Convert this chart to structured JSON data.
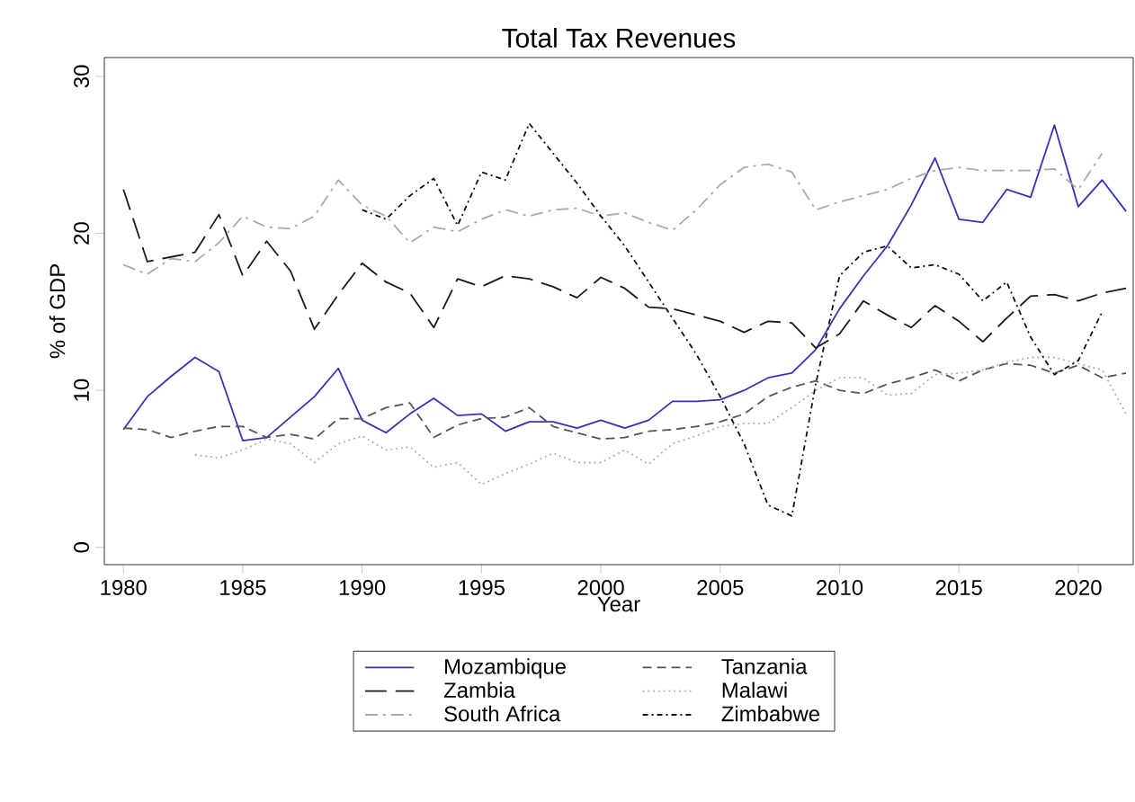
{
  "chart_data": {
    "type": "line",
    "title": "Total Tax Revenues",
    "xlabel": "Year",
    "ylabel": "% of GDP",
    "x": [
      1980,
      1981,
      1982,
      1983,
      1984,
      1985,
      1986,
      1987,
      1988,
      1989,
      1990,
      1991,
      1992,
      1993,
      1994,
      1995,
      1996,
      1997,
      1998,
      1999,
      2000,
      2001,
      2002,
      2003,
      2004,
      2005,
      2006,
      2007,
      2008,
      2009,
      2010,
      2011,
      2012,
      2013,
      2014,
      2015,
      2016,
      2017,
      2018,
      2019,
      2020,
      2021,
      2022
    ],
    "series": [
      {
        "name": "Mozambique",
        "color": "#3333bb",
        "line_style": "solid",
        "values": [
          7.5,
          9.6,
          10.9,
          12.1,
          11.2,
          6.8,
          7.0,
          8.3,
          9.6,
          11.4,
          8.1,
          7.3,
          8.5,
          9.5,
          8.4,
          8.5,
          7.4,
          8.0,
          8.0,
          7.6,
          8.1,
          7.6,
          8.1,
          9.3,
          9.3,
          9.4,
          10.0,
          10.8,
          11.1,
          12.6,
          15.2,
          17.3,
          19.2,
          21.8,
          24.8,
          20.9,
          20.7,
          22.8,
          22.3,
          26.9,
          21.7,
          23.4,
          21.4
        ]
      },
      {
        "name": "Tanzania",
        "color": "#555555",
        "line_style": "dashed",
        "values": [
          7.6,
          7.5,
          7.0,
          7.4,
          7.7,
          7.7,
          7.0,
          7.2,
          6.9,
          8.2,
          8.2,
          8.9,
          9.2,
          7.0,
          7.8,
          8.2,
          8.3,
          8.9,
          7.7,
          7.3,
          6.9,
          7.0,
          7.4,
          7.5,
          7.7,
          8.0,
          8.5,
          9.6,
          10.2,
          10.6,
          10.0,
          9.8,
          10.4,
          10.8,
          11.3,
          10.6,
          11.3,
          11.7,
          11.6,
          11.1,
          11.6,
          10.8,
          11.1
        ]
      },
      {
        "name": "Zambia",
        "color": "#1a1a1a",
        "line_style": "longdashed",
        "values": [
          22.8,
          18.2,
          18.5,
          18.8,
          21.2,
          17.3,
          19.5,
          17.6,
          13.9,
          16.1,
          18.1,
          16.9,
          16.2,
          14.0,
          17.1,
          16.6,
          17.3,
          17.1,
          16.6,
          15.9,
          17.2,
          16.5,
          15.3,
          15.2,
          14.8,
          14.4,
          13.7,
          14.4,
          14.3,
          12.7,
          13.6,
          15.7,
          14.8,
          14.0,
          15.4,
          14.4,
          13.1,
          14.6,
          16.0,
          16.1,
          15.7,
          16.2,
          16.5
        ]
      },
      {
        "name": "Malawi",
        "color": "#aaaaaa",
        "line_style": "dotted",
        "values": [
          null,
          null,
          null,
          5.9,
          5.7,
          6.2,
          6.9,
          6.6,
          5.4,
          6.6,
          7.1,
          6.2,
          6.4,
          5.1,
          5.4,
          4.0,
          4.7,
          5.3,
          6.0,
          5.4,
          5.4,
          6.2,
          5.3,
          6.6,
          7.1,
          7.7,
          7.9,
          7.9,
          8.9,
          10.0,
          10.8,
          10.8,
          9.7,
          9.8,
          11.0,
          11.1,
          11.3,
          11.8,
          12.1,
          12.1,
          11.7,
          11.3,
          8.5
        ]
      },
      {
        "name": "South Africa",
        "color": "#aaaaaa",
        "line_style": "dashdotted",
        "values": [
          18.0,
          17.4,
          18.4,
          18.2,
          19.4,
          21.1,
          20.4,
          20.3,
          21.1,
          23.4,
          21.8,
          21.1,
          19.4,
          20.4,
          20.1,
          20.9,
          21.5,
          21.1,
          21.5,
          21.6,
          21.1,
          21.3,
          20.7,
          20.2,
          21.5,
          23.1,
          24.2,
          24.4,
          23.9,
          21.5,
          22.0,
          22.4,
          22.8,
          23.5,
          24.0,
          24.2,
          24.0,
          24.0,
          24.0,
          24.1,
          22.8,
          25.1,
          null
        ]
      },
      {
        "name": "Zimbabwe",
        "color": "#111111",
        "line_style": "densedashdotted",
        "values": [
          null,
          null,
          null,
          null,
          null,
          null,
          null,
          null,
          null,
          null,
          21.5,
          20.9,
          22.4,
          23.5,
          20.5,
          23.9,
          23.4,
          27.0,
          25.1,
          23.2,
          21.1,
          19.2,
          16.9,
          14.6,
          12.3,
          9.6,
          6.6,
          2.7,
          2.0,
          10.4,
          17.3,
          18.8,
          19.2,
          17.8,
          18.0,
          17.4,
          15.7,
          16.9,
          13.4,
          11.0,
          11.9,
          15.0,
          null
        ]
      }
    ],
    "xlim": [
      1979.2,
      2022.3
    ],
    "ylim": [
      -1.1,
      31.2
    ],
    "xticks": [
      1980,
      1985,
      1990,
      1995,
      2000,
      2005,
      2010,
      2015,
      2020
    ],
    "yticks": [
      0,
      10,
      20,
      30
    ],
    "legend": "bottom"
  }
}
